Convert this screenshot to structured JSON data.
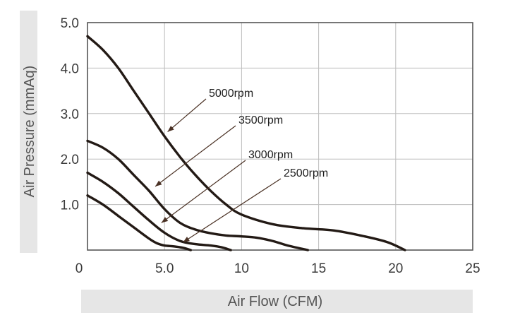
{
  "chart_data": {
    "type": "line",
    "xlabel": "Air Flow (CFM)",
    "ylabel": "Air Pressure (mmAq)",
    "xlim": [
      0,
      25
    ],
    "ylim": [
      0,
      5
    ],
    "x_ticks": [
      {
        "value": 0,
        "label": "0"
      },
      {
        "value": 5,
        "label": "5.0"
      },
      {
        "value": 10,
        "label": "10"
      },
      {
        "value": 15,
        "label": "15"
      },
      {
        "value": 20,
        "label": "20"
      },
      {
        "value": 25,
        "label": "25"
      }
    ],
    "y_ticks": [
      {
        "value": 1,
        "label": "1.0"
      },
      {
        "value": 2,
        "label": "2.0"
      },
      {
        "value": 3,
        "label": "3.0"
      },
      {
        "value": 4,
        "label": "4.0"
      },
      {
        "value": 5,
        "label": "5.0"
      }
    ],
    "grid": true,
    "series": [
      {
        "name": "5000rpm",
        "x": [
          0,
          1,
          2,
          3,
          4,
          5,
          6,
          7,
          8,
          9,
          10,
          12,
          14,
          16,
          18,
          19.5,
          20.6
        ],
        "y": [
          4.7,
          4.4,
          4.0,
          3.5,
          3.0,
          2.5,
          2.05,
          1.65,
          1.3,
          1.0,
          0.78,
          0.57,
          0.48,
          0.43,
          0.3,
          0.17,
          0.0
        ]
      },
      {
        "name": "3500rpm",
        "x": [
          0,
          1,
          2,
          3,
          4,
          5,
          6,
          7,
          8,
          9,
          10,
          11,
          12,
          13,
          14.3
        ],
        "y": [
          2.4,
          2.25,
          2.0,
          1.65,
          1.3,
          0.9,
          0.6,
          0.45,
          0.37,
          0.32,
          0.3,
          0.27,
          0.2,
          0.1,
          0.0
        ]
      },
      {
        "name": "3000rpm",
        "x": [
          0,
          1,
          2,
          3,
          4,
          5,
          6,
          7,
          8,
          8.7,
          9.3
        ],
        "y": [
          1.7,
          1.5,
          1.25,
          0.95,
          0.65,
          0.38,
          0.2,
          0.13,
          0.1,
          0.06,
          0.0
        ]
      },
      {
        "name": "2500rpm",
        "x": [
          0,
          1,
          2,
          3,
          4,
          4.5,
          5,
          5.6,
          6.2,
          6.7
        ],
        "y": [
          1.2,
          1.0,
          0.75,
          0.5,
          0.25,
          0.15,
          0.1,
          0.08,
          0.05,
          0.0
        ]
      }
    ],
    "annotations": [
      {
        "text": "5000rpm",
        "series": "5000rpm",
        "x": 5.2,
        "y": 2.6
      },
      {
        "text": "3500rpm",
        "series": "3500rpm",
        "x": 4.4,
        "y": 1.4
      },
      {
        "text": "3000rpm",
        "series": "3000rpm",
        "x": 4.8,
        "y": 0.6
      },
      {
        "text": "2500rpm",
        "series": "2500rpm",
        "x": 6.2,
        "y": 0.17
      }
    ],
    "colors": {
      "curve": "#231a15",
      "grid": "#bdbdbd",
      "frame": "#555555",
      "axis_title_band": "#e6e6e6",
      "arrow": "#4a3124"
    }
  }
}
